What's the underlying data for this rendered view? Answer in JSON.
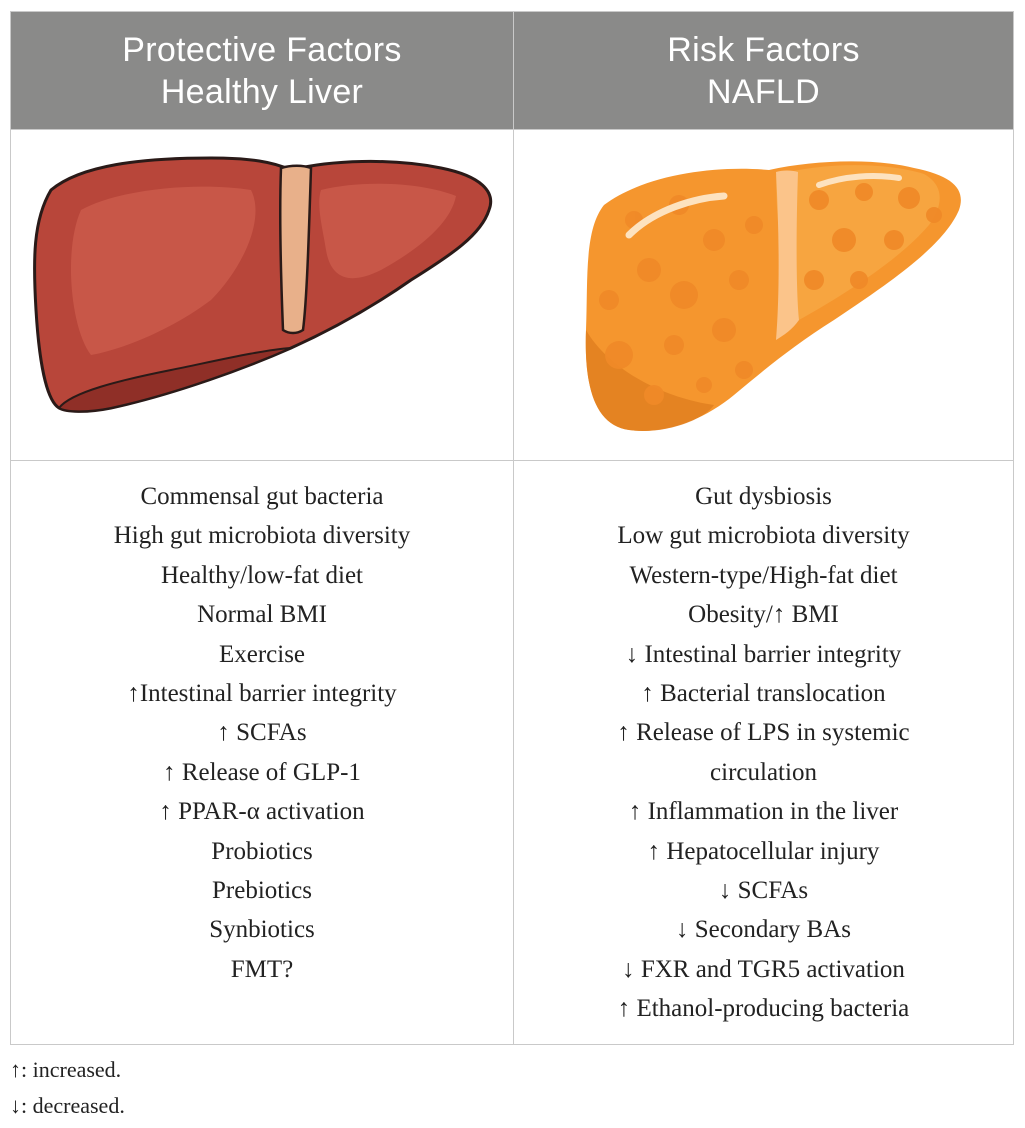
{
  "header": {
    "left": {
      "line1": "Protective Factors",
      "line2": "Healthy Liver"
    },
    "right": {
      "line1": "Risk Factors",
      "line2": "NAFLD"
    }
  },
  "images": {
    "left": {
      "icon": "healthy-liver-illustration",
      "color": "#b8463a"
    },
    "right": {
      "icon": "fatty-liver-illustration",
      "color": "#f5962e"
    }
  },
  "protective_factors": [
    "Commensal gut bacteria",
    "High gut microbiota diversity",
    "Healthy/low-fat diet",
    "Normal BMI",
    "Exercise",
    "↑Intestinal barrier integrity",
    "↑ SCFAs",
    "↑ Release of GLP-1",
    "↑ PPAR-α activation",
    "Probiotics",
    "Prebiotics",
    "Synbiotics",
    "FMT?"
  ],
  "risk_factors": [
    "Gut dysbiosis",
    "Low gut microbiota diversity",
    "Western-type/High-fat diet",
    "Obesity/↑ BMI",
    "↓ Intestinal barrier integrity",
    "↑ Bacterial translocation",
    "↑ Release of LPS in systemic",
    "circulation",
    "↑ Inflammation in the liver",
    "↑ Hepatocellular injury",
    "↓ SCFAs",
    "↓ Secondary BAs",
    "↓ FXR and TGR5 activation",
    "↑ Ethanol-producing bacteria"
  ],
  "footnotes": [
    "↑: increased.",
    "↓: decreased."
  ]
}
